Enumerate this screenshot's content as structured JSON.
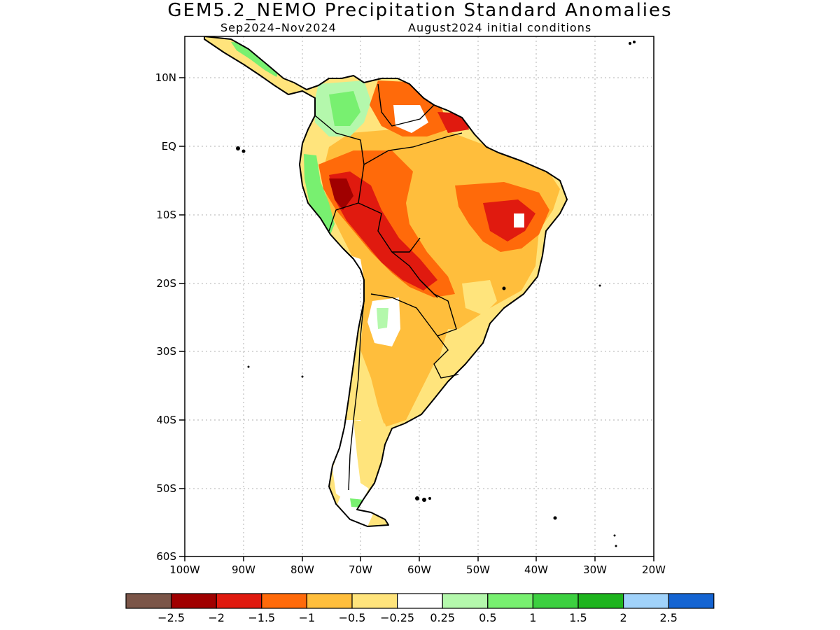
{
  "map": {
    "title": "GEM5.2_NEMO Precipitation Standard Anomalies",
    "period": "Sep2024–Nov2024",
    "init": "August2024 initial conditions",
    "lat_ticks": [
      "10N",
      "EQ",
      "10S",
      "20S",
      "30S",
      "40S",
      "50S",
      "60S"
    ],
    "lon_ticks": [
      "100W",
      "90W",
      "80W",
      "70W",
      "60W",
      "50W",
      "40W",
      "30W",
      "20W"
    ]
  },
  "colorbar": {
    "colors": [
      "#7b5548",
      "#a00000",
      "#e01a0f",
      "#ff6a0a",
      "#ffbe3c",
      "#ffe47c",
      "#ffffff",
      "#b4f8ac",
      "#78f070",
      "#3cd040",
      "#1eb41e",
      "#a0d2fa",
      "#1464d2"
    ],
    "labels": [
      "−2.5",
      "−2",
      "−1.5",
      "−1",
      "−0.5",
      "−0.25",
      "0.25",
      "0.5",
      "1",
      "1.5",
      "2",
      "2.5"
    ]
  }
}
